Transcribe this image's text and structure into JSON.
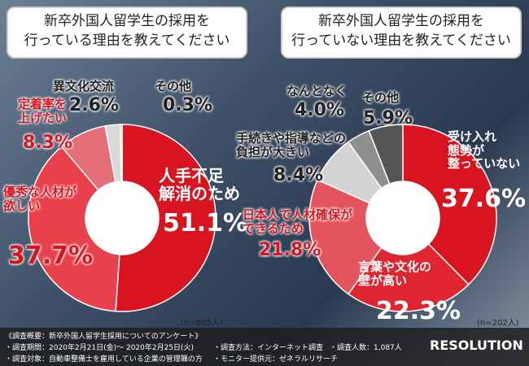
{
  "chart_data": [
    {
      "type": "donut",
      "title": "新卒外国人留学生の採用を\n行っている理由を教えてください",
      "categories": [
        "人手不足\n解消のため",
        "優秀な人材が\n欲しい",
        "定着率を\n上げたい",
        "異文化交流",
        "その他"
      ],
      "values": [
        51.1,
        37.7,
        8.3,
        2.6,
        0.3
      ],
      "value_labels": [
        "51.1%",
        "37.7%",
        "8.3%",
        "2.6%",
        "0.3%"
      ],
      "colors": [
        "#d7141f",
        "#e8414b",
        "#e56f77",
        "#d9d9d9",
        "#999999"
      ],
      "note": "(n=885人)"
    },
    {
      "type": "donut",
      "title": "新卒外国人留学生の採用を\n行っていない理由を教えてください",
      "categories": [
        "受け入れ\n態勢が\n整っていない",
        "言葉や文化の\n壁が高い",
        "日本人で人材確保が\nできるため",
        "手続きや指導などの\n負担が大きい",
        "なんとなく",
        "その他"
      ],
      "values": [
        37.6,
        22.3,
        21.8,
        8.4,
        4.0,
        5.9
      ],
      "value_labels": [
        "37.6%",
        "22.3%",
        "21.8%",
        "8.4%",
        "4.0%",
        "5.9%"
      ],
      "colors": [
        "#d7141f",
        "#de2530",
        "#e4545e",
        "#d3d3d3",
        "#8f8f8f",
        "#555555"
      ],
      "note": "(n=202人)"
    }
  ],
  "footer": {
    "heading": "《調査概要：新卒外国人留学生採用についてのアンケート》",
    "items": [
      "・調査期間：2020年2月21日(金)〜 2020年2月25日(火)",
      "・調査方法：インターネット調査",
      "・調査人数：1,087人",
      "・調査対象：自動車整備士を雇用している企業の管理職の方",
      "・モニター提供元：ゼネラルリサーチ"
    ],
    "logo": "RESOLUTION"
  }
}
